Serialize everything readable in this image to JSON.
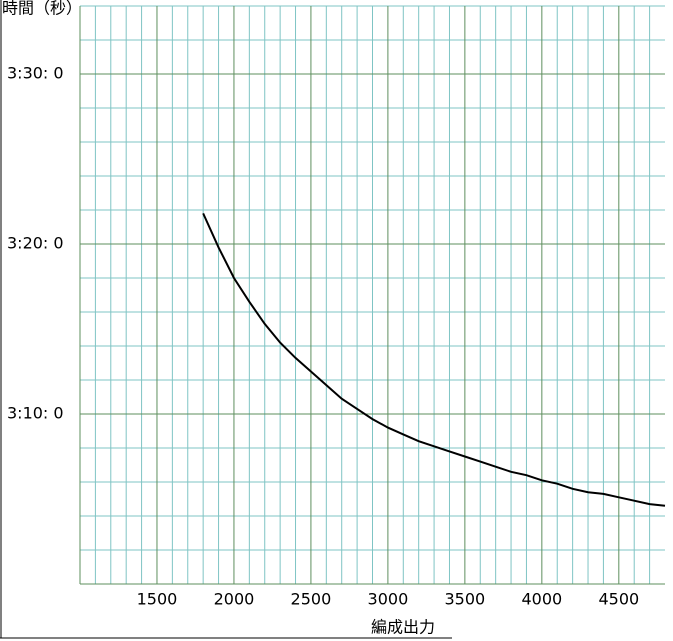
{
  "chart_data": {
    "type": "line",
    "y_label": "時間（秒）",
    "x_label": "編成出力",
    "x": [
      1800,
      1900,
      2000,
      2100,
      2200,
      2300,
      2400,
      2500,
      2600,
      2700,
      2800,
      2900,
      3000,
      3100,
      3200,
      3300,
      3400,
      3500,
      3600,
      3700,
      3800,
      3900,
      4000,
      4100,
      4200,
      4300,
      4400,
      4500,
      4600,
      4700,
      4800
    ],
    "values": [
      201.8,
      199.8,
      198.0,
      196.6,
      195.3,
      194.2,
      193.3,
      192.5,
      191.7,
      190.9,
      190.3,
      189.7,
      189.2,
      188.8,
      188.4,
      188.1,
      187.8,
      187.5,
      187.2,
      186.9,
      186.6,
      186.4,
      186.1,
      185.9,
      185.6,
      185.4,
      185.3,
      185.1,
      184.9,
      184.7,
      184.6
    ],
    "color": "#000000",
    "xlim": [
      1000,
      4800
    ],
    "ylim": [
      180,
      214
    ],
    "xticks": [
      1500,
      2000,
      2500,
      3000,
      3500,
      4000,
      4500
    ],
    "yticks": [
      {
        "value": 210,
        "label": "3:30: 0"
      },
      {
        "value": 200,
        "label": "3:20: 0"
      },
      {
        "value": 190,
        "label": "3:10: 0"
      }
    ],
    "x_minor_grid": [
      1000,
      1100,
      1200,
      1300,
      1400,
      1600,
      1700,
      1800,
      1900,
      2100,
      2200,
      2300,
      2400,
      2600,
      2700,
      2800,
      2900,
      3100,
      3200,
      3300,
      3400,
      3600,
      3700,
      3800,
      3900,
      4100,
      4200,
      4300,
      4400,
      4600,
      4700
    ],
    "y_minor_grid": [
      182,
      184,
      186,
      188,
      192,
      194,
      196,
      198,
      202,
      204,
      206,
      208,
      212,
      214
    ],
    "grid": true
  }
}
